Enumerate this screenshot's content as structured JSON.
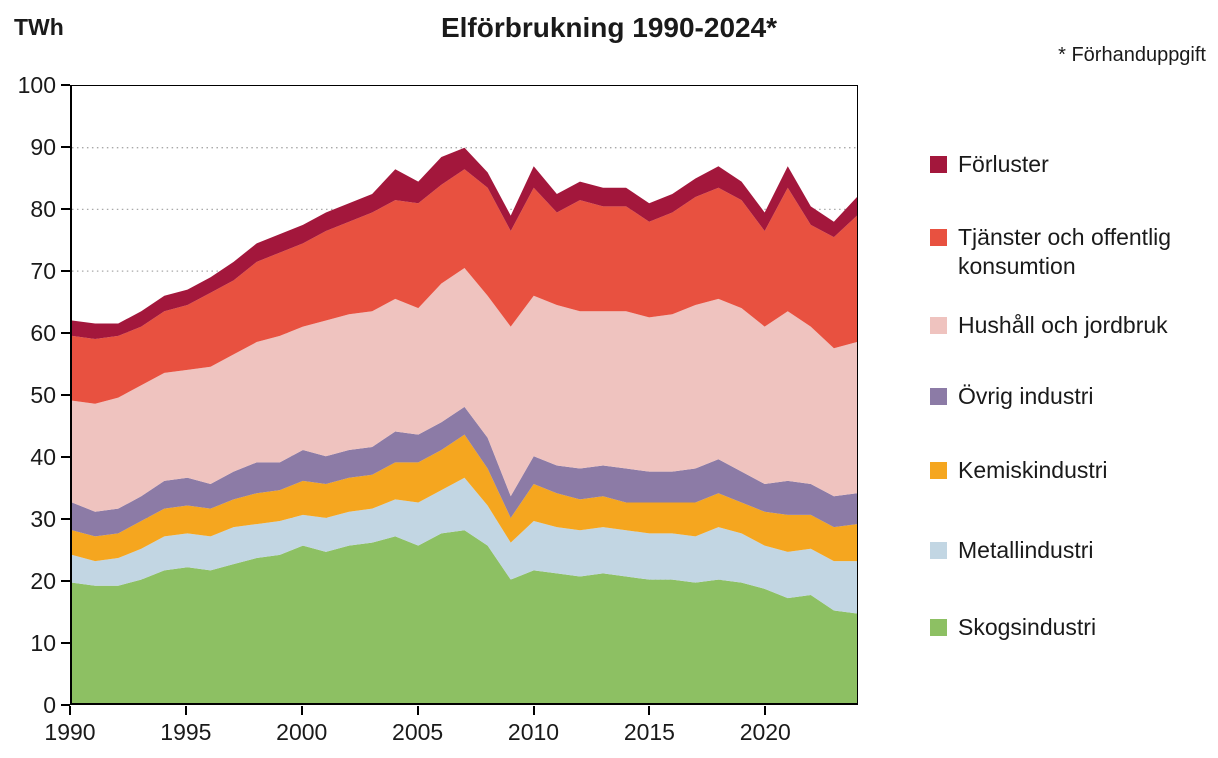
{
  "title": "Elförbrukning 1990-2024*",
  "y_axis_unit": "TWh",
  "footnote": "* Förhanduppgift",
  "chart_data": {
    "type": "area",
    "stacked": true,
    "title": "Elförbrukning 1990-2024*",
    "ylabel": "TWh",
    "xlabel": "",
    "ylim": [
      0,
      100
    ],
    "x_range": [
      1990,
      2024
    ],
    "grid": "horizontal-dotted",
    "legend_position": "right",
    "legend_order": "top-of-stack-first",
    "y_ticks": [
      0,
      10,
      20,
      30,
      40,
      50,
      60,
      70,
      80,
      90,
      100
    ],
    "x_ticks": [
      1990,
      1995,
      2000,
      2005,
      2010,
      2015,
      2020
    ],
    "years": [
      1990,
      1991,
      1992,
      1993,
      1994,
      1995,
      1996,
      1997,
      1998,
      1999,
      2000,
      2001,
      2002,
      2003,
      2004,
      2005,
      2006,
      2007,
      2008,
      2009,
      2010,
      2011,
      2012,
      2013,
      2014,
      2015,
      2016,
      2017,
      2018,
      2019,
      2020,
      2021,
      2022,
      2023,
      2024
    ],
    "series": [
      {
        "key": "skogsindustri",
        "name": "Skogsindustri",
        "color": "#8DC063",
        "values": [
          19.5,
          19,
          19,
          20,
          21.5,
          22,
          21.5,
          22.5,
          23.5,
          24,
          25.5,
          24.5,
          25.5,
          26,
          27,
          25.5,
          27.5,
          28,
          25.5,
          20,
          21.5,
          21,
          20.5,
          21,
          20.5,
          20,
          20,
          19.5,
          20,
          19.5,
          18.5,
          17,
          17.5,
          15,
          14.5
        ]
      },
      {
        "key": "metallindustri",
        "name": "Metallindustri",
        "color": "#C2D6E3",
        "values": [
          4.5,
          4,
          4.5,
          5,
          5.5,
          5.5,
          5.5,
          6,
          5.5,
          5.5,
          5,
          5.5,
          5.5,
          5.5,
          6,
          7,
          7,
          8.5,
          6.5,
          6,
          8,
          7.5,
          7.5,
          7.5,
          7.5,
          7.5,
          7.5,
          7.5,
          8.5,
          8,
          7,
          7.5,
          7.5,
          8,
          8.5
        ]
      },
      {
        "key": "kemiskindustri",
        "name": "Kemiskindustri",
        "color": "#F5A61F",
        "values": [
          4,
          4,
          4,
          4.5,
          4.5,
          4.5,
          4.5,
          4.5,
          5,
          5,
          5.5,
          5.5,
          5.5,
          5.5,
          6,
          6.5,
          6.5,
          7,
          6,
          4,
          6,
          5.5,
          5,
          5,
          4.5,
          5,
          5,
          5.5,
          5.5,
          5,
          5.5,
          6,
          5.5,
          5.5,
          6
        ]
      },
      {
        "key": "ovrig-industri",
        "name": "Övrig industri",
        "color": "#8C7BA6",
        "values": [
          4.5,
          4,
          4,
          4,
          4.5,
          4.5,
          4,
          4.5,
          5,
          4.5,
          5,
          4.5,
          4.5,
          4.5,
          5,
          4.5,
          4.5,
          4.5,
          5,
          3.5,
          4.5,
          4.5,
          5,
          5,
          5.5,
          5,
          5,
          5.5,
          5.5,
          5,
          4.5,
          5.5,
          5,
          5,
          5
        ]
      },
      {
        "key": "hushall-och-jordbruk",
        "name": "Hushåll och jordbruk",
        "color": "#EFC3BF",
        "values": [
          16.5,
          17.5,
          18,
          18,
          17.5,
          17.5,
          19,
          19,
          19.5,
          20.5,
          20,
          22,
          22,
          22,
          21.5,
          20.5,
          22.5,
          22.5,
          23,
          27.5,
          26,
          26,
          25.5,
          25,
          25.5,
          25,
          25.5,
          26.5,
          26,
          26.5,
          25.5,
          27.5,
          25.5,
          24,
          24.5
        ]
      },
      {
        "key": "tjanster-och-offentlig-konsumtion",
        "name": "Tjänster och offentlig konsumtion",
        "color": "#E85140",
        "values": [
          10.5,
          10.5,
          10,
          9.5,
          10,
          10.5,
          12,
          12,
          13,
          13.5,
          13.5,
          14.5,
          15,
          16,
          16,
          17,
          16,
          16,
          17.5,
          15.5,
          17.5,
          15,
          18,
          17,
          17,
          15.5,
          16.5,
          17.5,
          18,
          17.5,
          15.5,
          20,
          16.5,
          18,
          20.5
        ]
      },
      {
        "key": "forluster",
        "name": "Förluster",
        "color": "#A3173C",
        "values": [
          2.5,
          2.5,
          2,
          2.5,
          2.5,
          2.5,
          2.5,
          3,
          3,
          3,
          3,
          3,
          3,
          3,
          5,
          3.5,
          4.5,
          3.5,
          2.5,
          2.5,
          3.5,
          3,
          3,
          3,
          3,
          3,
          3,
          3,
          3.5,
          3,
          3,
          3.5,
          3,
          2.5,
          3
        ]
      }
    ]
  }
}
